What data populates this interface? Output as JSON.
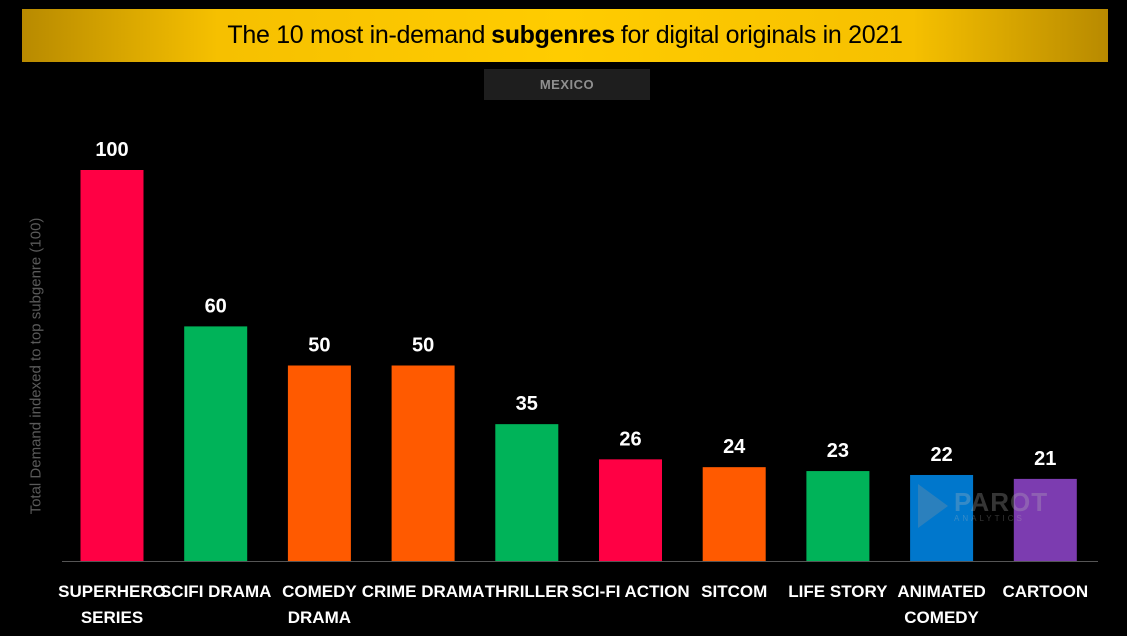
{
  "header": {
    "title_pre": "The 10 most in-demand",
    "title_bold": "subgenres",
    "title_post": "for digital originals in 2021",
    "subtitle": "MEXICO"
  },
  "watermark": {
    "line1": "PAROT",
    "line2": "ANALYTICS"
  },
  "colors": {
    "background": "#000000",
    "title_band": "#ffcc00"
  },
  "chart_data": {
    "type": "bar",
    "title": "The 10 most in-demand subgenres for digital originals in 2021",
    "subtitle": "MEXICO",
    "xlabel": "",
    "ylabel": "Total Demand indexed to top subgenre (100)",
    "ylim": [
      0,
      100
    ],
    "grid": false,
    "legend": "none",
    "categories": [
      "SUPERHERO SERIES",
      "SCIFI DRAMA",
      "COMEDY DRAMA",
      "CRIME DRAMA",
      "THRILLER",
      "SCI-FI ACTION",
      "SITCOM",
      "LIFE STORY",
      "ANIMATED COMEDY",
      "CARTOON"
    ],
    "category_lines": [
      [
        "SUPERHERO",
        "SERIES"
      ],
      [
        "SCIFI DRAMA"
      ],
      [
        "COMEDY",
        "DRAMA"
      ],
      [
        "CRIME DRAMA"
      ],
      [
        "THRILLER"
      ],
      [
        "SCI-FI ACTION"
      ],
      [
        "SITCOM"
      ],
      [
        "LIFE STORY"
      ],
      [
        "ANIMATED",
        "COMEDY"
      ],
      [
        "CARTOON"
      ]
    ],
    "values": [
      100,
      60,
      50,
      50,
      35,
      26,
      24,
      23,
      22,
      21
    ],
    "bar_colors": [
      "#ff0044",
      "#00b359",
      "#ff5a00",
      "#ff5a00",
      "#00b359",
      "#ff0044",
      "#ff5a00",
      "#00b359",
      "#0077cc",
      "#7c3cb0"
    ]
  }
}
